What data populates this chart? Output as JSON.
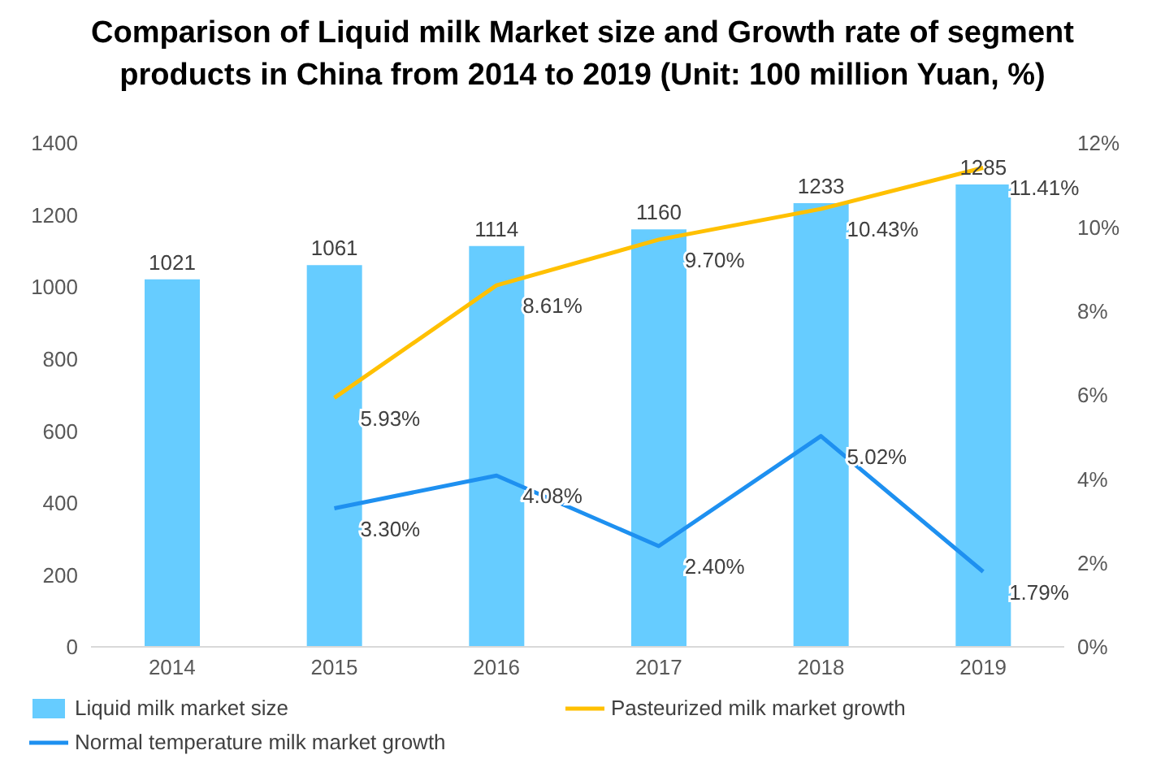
{
  "chart_data": {
    "type": "bar",
    "title": "Comparison of Liquid milk Market size and Growth rate of segment products in China from 2014 to 2019 (Unit: 100 million Yuan, %)",
    "categories": [
      "2014",
      "2015",
      "2016",
      "2017",
      "2018",
      "2019"
    ],
    "series": [
      {
        "name": "Liquid milk market size",
        "color": "#66ccff",
        "values": [
          1021,
          1061,
          1114,
          1160,
          1233,
          1285
        ],
        "value_labels": [
          "1021",
          "1061",
          "1114",
          "1160",
          "1233",
          "1285"
        ]
      },
      {
        "name": "Pasteurized milk market growth",
        "type": "line",
        "axis": "y2",
        "color": "#ffc000",
        "values": [
          null,
          5.93,
          8.61,
          9.7,
          10.43,
          11.41
        ],
        "value_labels": [
          null,
          "5.93%",
          "8.61%",
          "9.70%",
          "10.43%",
          "11.41%"
        ]
      },
      {
        "name": "Normal temperature milk market growth",
        "type": "line",
        "axis": "y2",
        "color": "#1e90f0",
        "values": [
          null,
          3.3,
          4.08,
          2.4,
          5.02,
          1.79
        ],
        "value_labels": [
          null,
          "3.30%",
          "4.08%",
          "2.40%",
          "5.02%",
          "1.79%"
        ]
      }
    ],
    "ylim": [
      0,
      1400
    ],
    "yticks": [
      0,
      200,
      400,
      600,
      800,
      1000,
      1200,
      1400
    ],
    "y2lim": [
      0,
      12
    ],
    "y2ticks": [
      {
        "value": 0,
        "label": "0%"
      },
      {
        "value": 2,
        "label": "2%"
      },
      {
        "value": 4,
        "label": "4%"
      },
      {
        "value": 6,
        "label": "6%"
      },
      {
        "value": 8,
        "label": "8%"
      },
      {
        "value": 10,
        "label": "10%"
      },
      {
        "value": 12,
        "label": "12%"
      }
    ],
    "grid": false,
    "legend": "bottom",
    "marker": "none",
    "line_style": "solid"
  }
}
